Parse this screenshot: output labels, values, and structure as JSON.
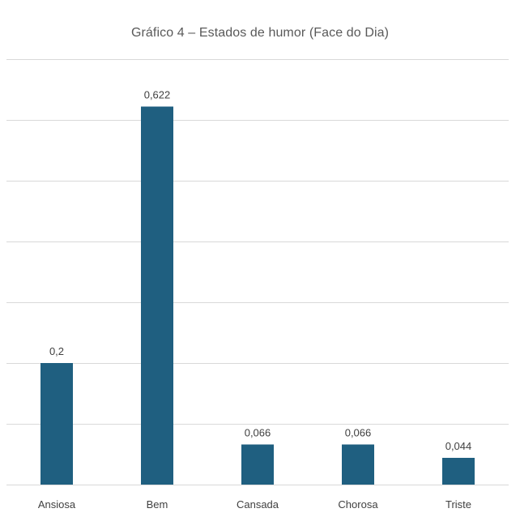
{
  "chart_data": {
    "type": "bar",
    "title": "Gráfico 4 – Estados de humor (Face do Dia)",
    "categories": [
      "Ansiosa",
      "Bem",
      "Cansada",
      "Chorosa",
      "Triste"
    ],
    "values": [
      0.2,
      0.622,
      0.066,
      0.066,
      0.044
    ],
    "data_labels": [
      "0,2",
      "0,622",
      "0,066",
      "0,066",
      "0,044"
    ],
    "xlabel": "",
    "ylabel": "",
    "ylim": [
      0,
      0.7
    ],
    "y_tick_step": 0.1,
    "y_axis_labels_shown": false,
    "grid": true,
    "legend": "none",
    "colors": {
      "bar": "#1F5F80",
      "grid": "#D9D9D9",
      "label_text": "#404040",
      "title_text": "#595959"
    }
  }
}
